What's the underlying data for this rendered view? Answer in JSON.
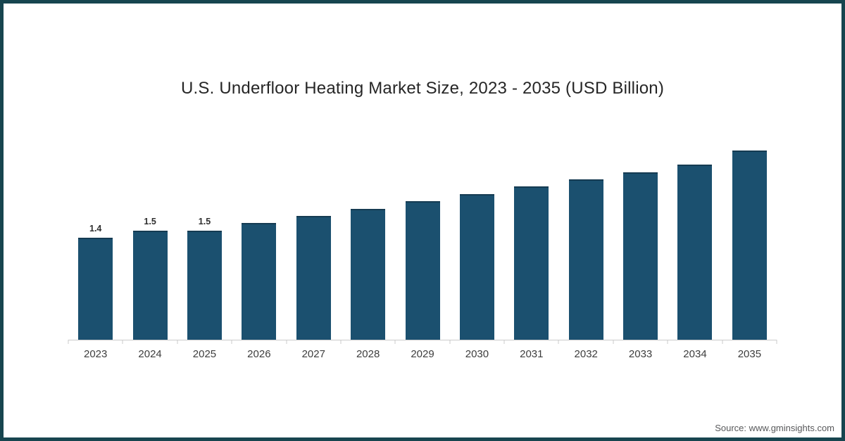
{
  "chart": {
    "title": "U.S. Underfloor Heating Market Size, 2023 - 2035 (USD Billion)",
    "source": "Source: www.gminsights.com",
    "colors": {
      "bar": "#1b506f",
      "bar_top_edge": "#153b52",
      "page_border": "#17454f",
      "axis": "#cbcbcb",
      "title_text": "#262626",
      "value_label_text": "#2e2e2e",
      "source_text": "#58595b"
    }
  },
  "chart_data": {
    "type": "bar",
    "title": "U.S. Underfloor Heating Market Size, 2023 - 2035 (USD Billion)",
    "categories": [
      "2023",
      "2024",
      "2025",
      "2026",
      "2027",
      "2028",
      "2029",
      "2030",
      "2031",
      "2032",
      "2033",
      "2034",
      "2035"
    ],
    "values": [
      1.4,
      1.5,
      1.5,
      1.6,
      1.7,
      1.8,
      1.9,
      2.0,
      2.1,
      2.2,
      2.3,
      2.4,
      2.6
    ],
    "value_labels": [
      "1.4",
      "1.5",
      "1.5",
      "",
      "",
      "",
      "",
      "",
      "",
      "",
      "",
      "",
      ""
    ],
    "xlabel": "",
    "ylabel": "",
    "ylim": [
      0,
      2.8
    ],
    "grid": false,
    "legend": false,
    "source": "Source: www.gminsights.com"
  }
}
